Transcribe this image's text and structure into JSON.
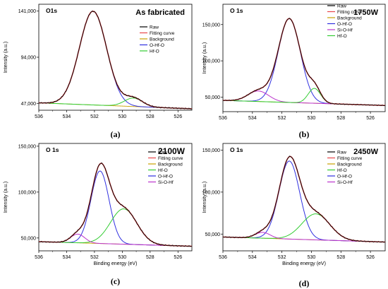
{
  "chart_data": [
    {
      "type": "line",
      "panel_letter": "(a)",
      "element_label": "O1s",
      "condition_label": "As fabricated",
      "xlabel": "",
      "ylabel": "Intensity (a.u.)",
      "xlim": [
        536,
        525
      ],
      "ylim": [
        40000,
        148000
      ],
      "x_ticks": [
        536,
        534,
        532,
        530,
        528,
        526
      ],
      "y_ticks": [
        {
          "value": 47000,
          "label": "47,000"
        },
        {
          "value": 94000,
          "label": "94,000"
        },
        {
          "value": 141000,
          "label": "141,000"
        }
      ],
      "legend": [
        {
          "name": "Raw",
          "color": "#000000"
        },
        {
          "name": "Fitting curve",
          "color": "#e8474a"
        },
        {
          "name": "Background",
          "color": "#c8a000"
        },
        {
          "name": "O-Hf-O",
          "color": "#3030e0"
        },
        {
          "name": "Hf-O",
          "color": "#33cc33"
        }
      ],
      "background": {
        "left": 47500,
        "right": 41500
      },
      "peaks": [
        {
          "name": "O-Hf-O",
          "color": "#3030e0",
          "center": 532.1,
          "width": 0.98,
          "amplitude": 95500
        },
        {
          "name": "Hf-O",
          "color": "#33cc33",
          "center": 529.2,
          "width": 0.65,
          "amplitude": 8600
        }
      ]
    },
    {
      "type": "line",
      "panel_letter": "(b)",
      "element_label": "O 1s",
      "condition_label": "1750W",
      "xlabel": "",
      "ylabel": "Intensity (a.u.)",
      "xlim": [
        536,
        525
      ],
      "ylim": [
        30000,
        178000
      ],
      "x_ticks": [
        536,
        534,
        532,
        530,
        528,
        526
      ],
      "y_ticks": [
        {
          "value": 50000,
          "label": "50,000"
        },
        {
          "value": 100000,
          "label": "100,000"
        },
        {
          "value": 150000,
          "label": "150,000"
        }
      ],
      "legend": [
        {
          "name": "Raw",
          "color": "#000000"
        },
        {
          "name": "Fitting curve",
          "color": "#e8474a"
        },
        {
          "name": "Background",
          "color": "#c8a000"
        },
        {
          "name": "O-Hf-O",
          "color": "#3030e0"
        },
        {
          "name": "Si-O-Hf",
          "color": "#bb33cc"
        },
        {
          "name": "Hf-O",
          "color": "#33cc33"
        }
      ],
      "background": {
        "left": 45500,
        "right": 38500
      },
      "peaks": [
        {
          "name": "O-Hf-O",
          "color": "#3030e0",
          "center": 531.5,
          "width": 0.75,
          "amplitude": 115500
        },
        {
          "name": "Si-O-Hf",
          "color": "#bb33cc",
          "center": 533.6,
          "width": 0.7,
          "amplitude": 14500
        },
        {
          "name": "Hf-O",
          "color": "#33cc33",
          "center": 529.8,
          "width": 0.42,
          "amplitude": 20500
        }
      ]
    },
    {
      "type": "line",
      "panel_letter": "(c)",
      "element_label": "O 1s",
      "condition_label": "2100W",
      "xlabel": "Binding energy (eV)",
      "ylabel": "Intensity (a.u.)",
      "xlim": [
        536,
        525
      ],
      "ylim": [
        36000,
        153000
      ],
      "x_ticks": [
        536,
        534,
        532,
        530,
        528,
        526
      ],
      "y_ticks": [
        {
          "value": 50000,
          "label": "50,000"
        },
        {
          "value": 100000,
          "label": "100,000"
        },
        {
          "value": 150000,
          "label": "150,000"
        }
      ],
      "legend": [
        {
          "name": "Raw",
          "color": "#000000"
        },
        {
          "name": "Fitting curve",
          "color": "#e8474a"
        },
        {
          "name": "Background",
          "color": "#c8a000"
        },
        {
          "name": "Hf-O",
          "color": "#33cc33"
        },
        {
          "name": "O-Hf-O",
          "color": "#3030e0"
        },
        {
          "name": "Si-O-Hf",
          "color": "#bb33cc"
        }
      ],
      "background": {
        "left": 46000,
        "right": 41000
      },
      "peaks": [
        {
          "name": "O-Hf-O",
          "color": "#3030e0",
          "center": 531.6,
          "width": 0.65,
          "amplitude": 79000
        },
        {
          "name": "Hf-O",
          "color": "#33cc33",
          "center": 529.9,
          "width": 0.95,
          "amplitude": 38500
        },
        {
          "name": "Si-O-Hf",
          "color": "#bb33cc",
          "center": 533.2,
          "width": 0.5,
          "amplitude": 9500
        }
      ]
    },
    {
      "type": "line",
      "panel_letter": "(d)",
      "element_label": "O 1s",
      "condition_label": "2450W",
      "xlabel": "Binding energy (eV)",
      "ylabel": "Intensity (a.u.)",
      "xlim": [
        536,
        525
      ],
      "ylim": [
        30000,
        158000
      ],
      "x_ticks": [
        536,
        534,
        532,
        530,
        528,
        526
      ],
      "y_ticks": [
        {
          "value": 50000,
          "label": "50,000"
        },
        {
          "value": 100000,
          "label": "100,000"
        },
        {
          "value": 150000,
          "label": "150,000"
        }
      ],
      "legend": [
        {
          "name": "Raw",
          "color": "#000000"
        },
        {
          "name": "Fitting curve",
          "color": "#e8474a"
        },
        {
          "name": "Background",
          "color": "#c8a000"
        },
        {
          "name": "Hf-O",
          "color": "#33cc33"
        },
        {
          "name": "O-Hf-O",
          "color": "#3030e0"
        },
        {
          "name": "Si-O-Hf",
          "color": "#bb33cc"
        }
      ],
      "background": {
        "left": 46500,
        "right": 40500
      },
      "peaks": [
        {
          "name": "O-Hf-O",
          "color": "#3030e0",
          "center": 531.5,
          "width": 0.7,
          "amplitude": 93000
        },
        {
          "name": "Hf-O",
          "color": "#33cc33",
          "center": 529.7,
          "width": 0.95,
          "amplitude": 31000
        },
        {
          "name": "Si-O-Hf",
          "color": "#bb33cc",
          "center": 533.3,
          "width": 0.5,
          "amplitude": 7000
        }
      ]
    }
  ]
}
